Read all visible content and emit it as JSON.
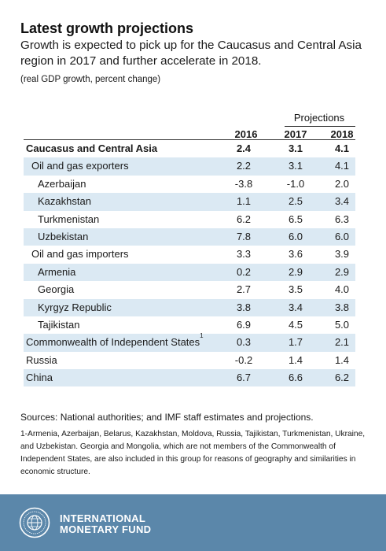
{
  "title": "Latest growth projections",
  "subtitle": "Growth is expected to pick up for the Caucasus and Central Asia region in 2017 and further accelerate in 2018.",
  "units": "(real GDP growth, percent change)",
  "table": {
    "projections_label": "Projections",
    "headers": [
      "2016",
      "2017",
      "2018"
    ],
    "rows": [
      {
        "label": "Caucasus and Central Asia",
        "sup": "",
        "v2016": "2.4",
        "v2017": "3.1",
        "v2018": "4.1"
      },
      {
        "label": "Oil and gas exporters",
        "sup": "",
        "v2016": "2.2",
        "v2017": "3.1",
        "v2018": "4.1"
      },
      {
        "label": "Azerbaijan",
        "sup": "",
        "v2016": "-3.8",
        "v2017": "-1.0",
        "v2018": "2.0"
      },
      {
        "label": "Kazakhstan",
        "sup": "",
        "v2016": "1.1",
        "v2017": "2.5",
        "v2018": "3.4"
      },
      {
        "label": "Turkmenistan",
        "sup": "",
        "v2016": "6.2",
        "v2017": "6.5",
        "v2018": "6.3"
      },
      {
        "label": "Uzbekistan",
        "sup": "",
        "v2016": "7.8",
        "v2017": "6.0",
        "v2018": "6.0"
      },
      {
        "label": "Oil and gas importers",
        "sup": "",
        "v2016": "3.3",
        "v2017": "3.6",
        "v2018": "3.9"
      },
      {
        "label": "Armenia",
        "sup": "",
        "v2016": "0.2",
        "v2017": "2.9",
        "v2018": "2.9"
      },
      {
        "label": "Georgia",
        "sup": "",
        "v2016": "2.7",
        "v2017": "3.5",
        "v2018": "4.0"
      },
      {
        "label": "Kyrgyz Republic",
        "sup": "",
        "v2016": "3.8",
        "v2017": "3.4",
        "v2018": "3.8"
      },
      {
        "label": "Tajikistan",
        "sup": "",
        "v2016": "6.9",
        "v2017": "4.5",
        "v2018": "5.0"
      },
      {
        "label": "Commonwealth of Independent States",
        "sup": "1",
        "v2016": "0.3",
        "v2017": "1.7",
        "v2018": "2.1"
      },
      {
        "label": "Russia",
        "sup": "",
        "v2016": "-0.2",
        "v2017": "1.4",
        "v2018": "1.4"
      },
      {
        "label": "China",
        "sup": "",
        "v2016": "6.7",
        "v2017": "6.6",
        "v2018": "6.2"
      }
    ]
  },
  "sources": "Sources: National authorities; and IMF staff estimates and projections.",
  "footnote": "1-Armenia, Azerbaijan, Belarus, Kazakhstan, Moldova, Russia, Tajikistan, Turkmenistan, Ukraine, and Uzbekistan. Georgia and Mongolia, which are not members of the Commonwealth of Independent States, are also included in this group for reasons of geography and similarities in economic structure.",
  "footer": {
    "org_line1": "INTERNATIONAL",
    "org_line2": "MONETARY FUND",
    "logo_icon": "imf-seal-icon",
    "bg_color": "#5b87aa"
  },
  "colors": {
    "shaded_row": "#dbe9f3"
  }
}
